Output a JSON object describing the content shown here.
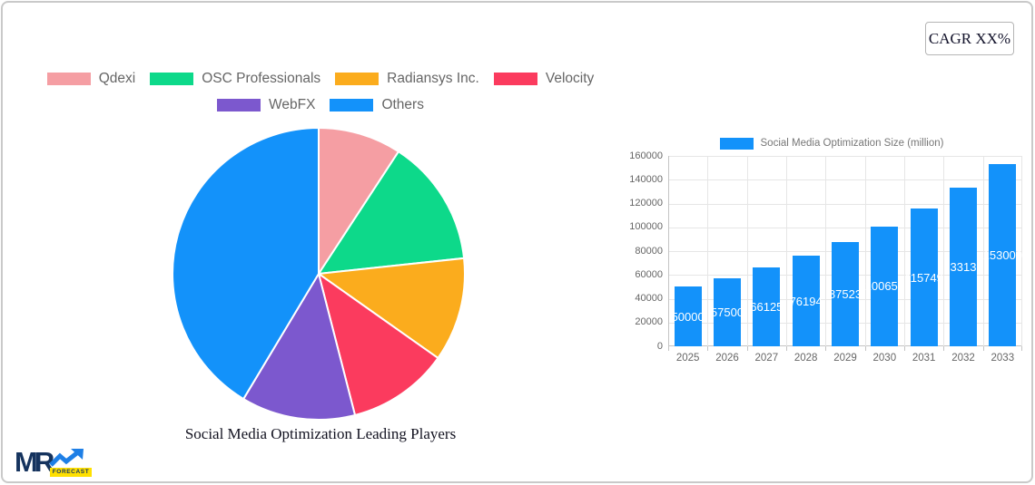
{
  "cagr_button": {
    "label": "CAGR XX%"
  },
  "logo": {
    "text": "MR",
    "badge": "FORECAST",
    "navy": "#15335E",
    "arrow_blue": "#1E7FE6",
    "badge_yellow": "#FFE000"
  },
  "chart_data": [
    {
      "type": "pie",
      "title": "Social Media Optimization Leading Players",
      "labels": [
        "Qdexi",
        "OSC Professionals",
        "Radiansys Inc.",
        "Velocity",
        "WebFX",
        "Others"
      ],
      "values_percent": [
        9.2,
        14.1,
        11.5,
        11.2,
        12.6,
        41.4
      ],
      "colors": [
        "#F59EA3",
        "#0DD98A",
        "#FBAC1D",
        "#FB3B5E",
        "#7C58CE",
        "#1392FA"
      ],
      "start_angle_deg": -90,
      "direction": "clockwise",
      "slice_border_color": "#ffffff",
      "legend_rows": [
        [
          0,
          1,
          2,
          3
        ],
        [
          4,
          5
        ]
      ],
      "legend_position": "top",
      "radius_px": 161
    },
    {
      "type": "bar",
      "legend_label": "Social Media Optimization Size (million)",
      "categories": [
        "2025",
        "2026",
        "2027",
        "2028",
        "2029",
        "2030",
        "2031",
        "2032",
        "2033"
      ],
      "values": [
        50000,
        57500,
        66125,
        76194,
        87523,
        100652,
        115749,
        133136,
        153000
      ],
      "bar_color": "#1392FA",
      "value_label_color": "#ffffff",
      "ylim": [
        0,
        160000
      ],
      "ytick_step": 20000,
      "ytick_labels": [
        "0",
        "20000",
        "40000",
        "60000",
        "80000",
        "100000",
        "120000",
        "140000",
        "160000"
      ],
      "grid": true,
      "legend_position": "top"
    }
  ]
}
